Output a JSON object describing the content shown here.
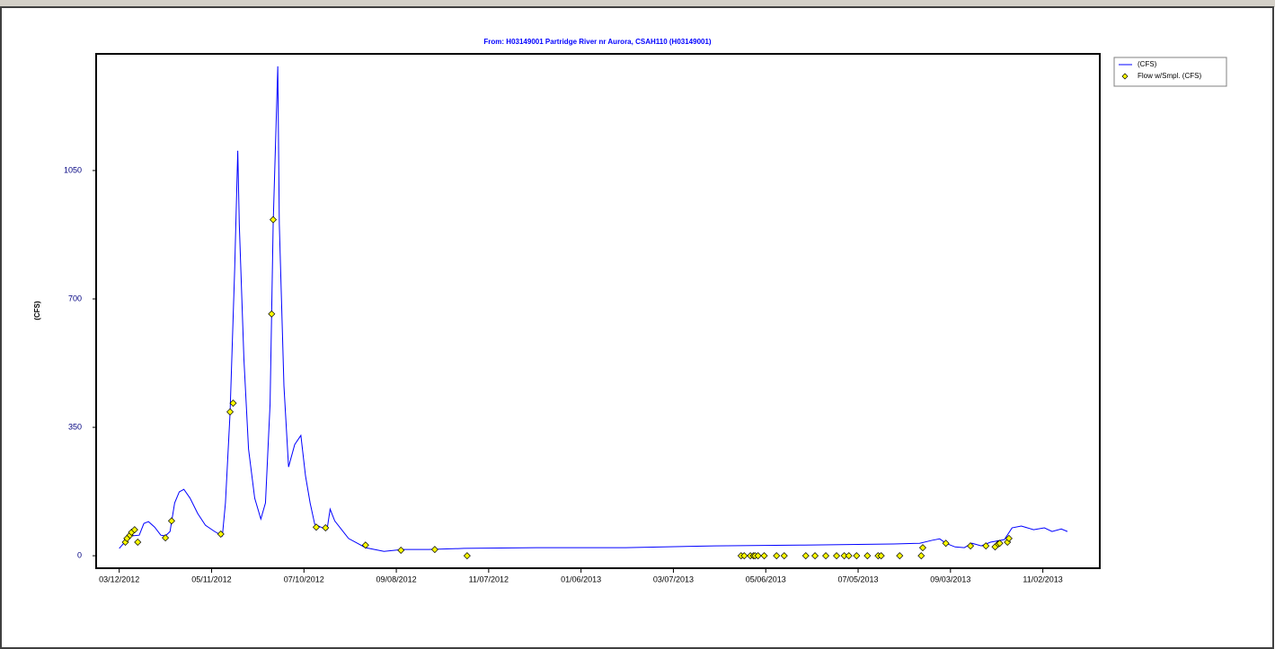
{
  "chart_data": {
    "type": "line",
    "title": "From: H03149001  Partridge River nr Aurora, CSAH110 (H03149001)",
    "y_label": "(CFS)",
    "xlim": [
      "02/26/2012",
      "12/09/2013"
    ],
    "xticks": [
      "03/12/2012",
      "05/11/2012",
      "07/10/2012",
      "09/08/2012",
      "11/07/2012",
      "01/06/2013",
      "03/07/2013",
      "05/06/2013",
      "07/05/2013",
      "09/03/2013",
      "11/02/2013"
    ],
    "ylim": [
      -34,
      1368
    ],
    "yticks": [
      0,
      350,
      700,
      1050
    ],
    "legend": "outside-top-right",
    "series": [
      {
        "name": "(CFS)",
        "type": "line",
        "color": "#0000ff",
        "x": [
          "03/12/2012",
          "03/16/2012",
          "03/20/2012",
          "03/25/2012",
          "03/28/2012",
          "03/31/2012",
          "04/04/2012",
          "04/08/2012",
          "04/11/2012",
          "04/14/2012",
          "04/17/2012",
          "04/20/2012",
          "04/23/2012",
          "04/27/2012",
          "05/02/2012",
          "05/07/2012",
          "05/13/2012",
          "05/18/2012",
          "05/20/2012",
          "05/23/2012",
          "05/26/2012",
          "05/28/2012",
          "05/29/2012",
          "06/01/2012",
          "06/04/2012",
          "06/08/2012",
          "06/12/2012",
          "06/15/2012",
          "06/18/2012",
          "06/20/2012",
          "06/23/2012",
          "06/24/2012",
          "06/27/2012",
          "06/30/2012",
          "07/04/2012",
          "07/08/2012",
          "07/11/2012",
          "07/14/2012",
          "07/17/2012",
          "07/22/2012",
          "07/25/2012",
          "07/27/2012",
          "07/30/2012",
          "08/08/2012",
          "08/19/2012",
          "08/31/2012",
          "09/12/2012",
          "09/29/2012",
          "10/22/2012",
          "12/08/2012",
          "02/04/2013",
          "04/03/2013",
          "05/31/2013",
          "07/28/2013",
          "08/14/2013",
          "08/22/2013",
          "08/27/2013",
          "08/31/2013",
          "09/06/2013",
          "09/12/2013",
          "09/17/2013",
          "09/23/2013",
          "09/29/2013",
          "10/08/2013",
          "10/13/2013",
          "10/19/2013",
          "10/27/2013",
          "11/03/2013",
          "11/08/2013",
          "11/14/2013",
          "11/18/2013"
        ],
        "values": [
          20,
          39,
          54,
          56,
          88,
          93,
          78,
          56,
          54,
          66,
          144,
          174,
          181,
          157,
          115,
          83,
          66,
          54,
          144,
          389,
          781,
          1104,
          903,
          536,
          291,
          157,
          100,
          144,
          414,
          903,
          1334,
          903,
          463,
          242,
          303,
          328,
          218,
          144,
          86,
          76,
          71,
          127,
          95,
          47,
          22,
          12,
          17,
          17,
          20,
          22,
          22,
          27,
          29,
          32,
          34,
          42,
          46,
          34,
          24,
          22,
          34,
          27,
          37,
          44,
          76,
          81,
          71,
          76,
          66,
          73,
          66
        ]
      },
      {
        "name": "Flow w/Smpl. (CFS)",
        "type": "scatter",
        "color": "#ffff00",
        "x": [
          "03/16/2012",
          "03/17/2012",
          "03/19/2012",
          "03/20/2012",
          "03/22/2012",
          "03/24/2012",
          "04/11/2012",
          "04/15/2012",
          "05/17/2012",
          "05/23/2012",
          "05/25/2012",
          "06/19/2012",
          "06/20/2012",
          "07/18/2012",
          "07/24/2012",
          "08/19/2012",
          "09/11/2012",
          "10/03/2012",
          "10/24/2012",
          "04/20/2013",
          "04/22/2013",
          "04/26/2013",
          "04/28/2013",
          "04/29/2013",
          "05/01/2013",
          "05/05/2013",
          "05/13/2013",
          "05/18/2013",
          "06/01/2013",
          "06/07/2013",
          "06/14/2013",
          "06/21/2013",
          "06/26/2013",
          "06/29/2013",
          "07/04/2013",
          "07/11/2013",
          "07/18/2013",
          "07/20/2013",
          "08/01/2013",
          "08/15/2013",
          "08/16/2013",
          "08/31/2013",
          "09/16/2013",
          "09/26/2013",
          "10/02/2013",
          "10/04/2013",
          "10/05/2013",
          "10/10/2013",
          "10/11/2013"
        ],
        "values": [
          37,
          47,
          56,
          64,
          71,
          37,
          49,
          95,
          59,
          392,
          416,
          659,
          916,
          78,
          76,
          29,
          15,
          17,
          0,
          0,
          0,
          0,
          0,
          0,
          0,
          0,
          0,
          0,
          0,
          0,
          0,
          0,
          0,
          0,
          0,
          0,
          0,
          0,
          0,
          0,
          22,
          34,
          27,
          27,
          24,
          32,
          34,
          37,
          47
        ]
      }
    ]
  }
}
